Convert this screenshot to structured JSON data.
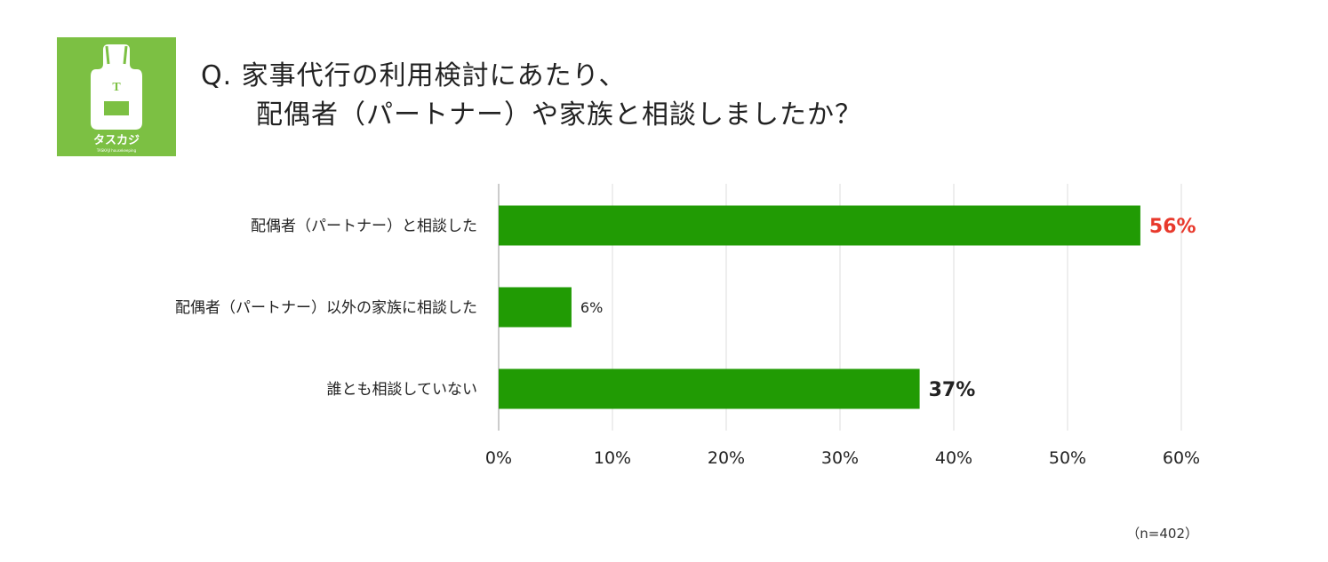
{
  "logo": {
    "icon": "apron-icon",
    "letter": "T",
    "brand": "タスカジ",
    "tagline": "TASKAJI housekeeping",
    "color": "#7cc043"
  },
  "question": {
    "line1": "Q. 家事代行の利用検討にあたり、",
    "line2": "配偶者（パートナー）や家族と相談しましたか？"
  },
  "chart_data": {
    "type": "bar",
    "orientation": "horizontal",
    "categories": [
      "配偶者（パートナー）と相談した",
      "配偶者（パートナー）以外の家族に相談した",
      "誰とも相談していない"
    ],
    "values": [
      56.4,
      6.4,
      37.0
    ],
    "data_labels": [
      "56%",
      "6%",
      "37%"
    ],
    "label_colors": [
      "#e8392c",
      "#222222",
      "#222222"
    ],
    "bar_color": "#219b04",
    "xlim": [
      0,
      60
    ],
    "xticks": [
      0,
      10,
      20,
      30,
      40,
      50,
      60
    ],
    "xtick_labels": [
      "0%",
      "10%",
      "20%",
      "30%",
      "40%",
      "50%",
      "60%"
    ],
    "grid": true
  },
  "footnote": "（n=402）"
}
